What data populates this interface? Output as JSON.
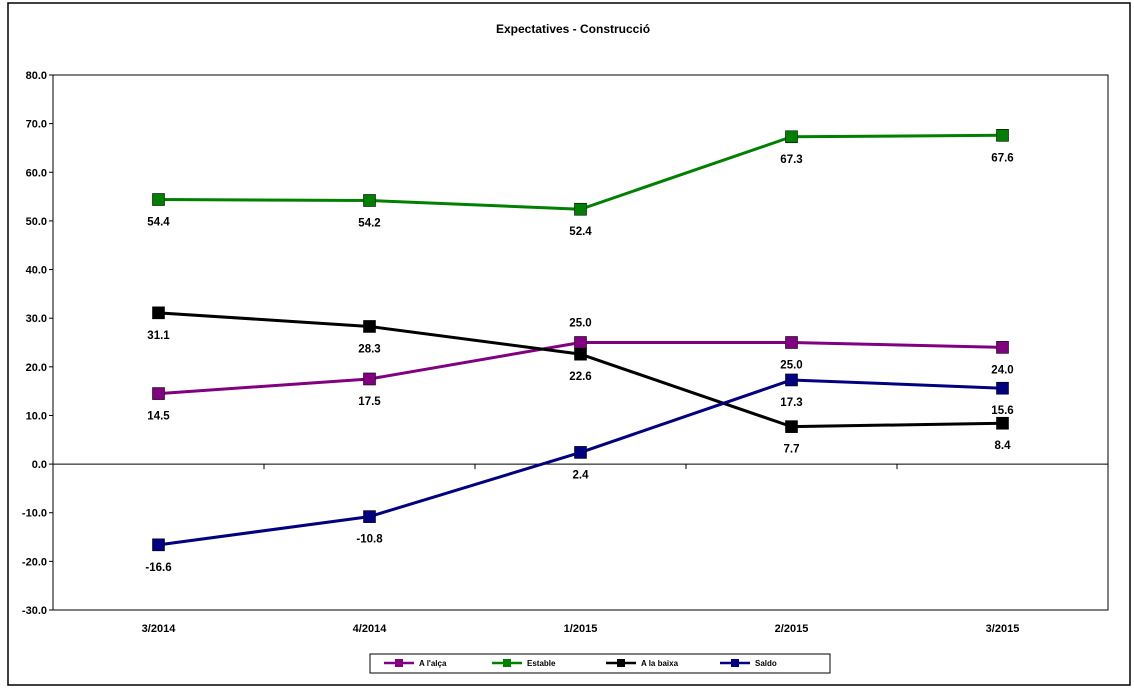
{
  "chart_data": {
    "type": "line",
    "title": "Expectatives - Construcció",
    "categories": [
      "3/2014",
      "4/2014",
      "1/2015",
      "2/2015",
      "3/2015"
    ],
    "ylim": [
      -30,
      80
    ],
    "yticks": [
      "80.0",
      "70.0",
      "60.0",
      "50.0",
      "40.0",
      "30.0",
      "20.0",
      "10.0",
      "0.0",
      "-10.0",
      "-20.0",
      "-30.0"
    ],
    "grid": false,
    "legend_position": "bottom",
    "series": [
      {
        "name": "A l'alça",
        "color": "#800080",
        "values": [
          14.5,
          17.5,
          25.0,
          25.0,
          24.0
        ],
        "labels": [
          "14.5",
          "17.5",
          "25.0",
          "25.0",
          "24.0"
        ]
      },
      {
        "name": "Estable",
        "color": "#008000",
        "values": [
          54.4,
          54.2,
          52.4,
          67.3,
          67.6
        ],
        "labels": [
          "54.4",
          "54.2",
          "52.4",
          "67.3",
          "67.6"
        ]
      },
      {
        "name": "A la baixa",
        "color": "#000000",
        "values": [
          31.1,
          28.3,
          22.6,
          7.7,
          8.4
        ],
        "labels": [
          "31.1",
          "28.3",
          "22.6",
          "7.7",
          "8.4"
        ]
      },
      {
        "name": "Saldo",
        "color": "#000080",
        "values": [
          -16.6,
          -10.8,
          2.4,
          17.3,
          15.6
        ],
        "labels": [
          "-16.6",
          "-10.8",
          "2.4",
          "17.3",
          "15.6"
        ]
      }
    ]
  }
}
